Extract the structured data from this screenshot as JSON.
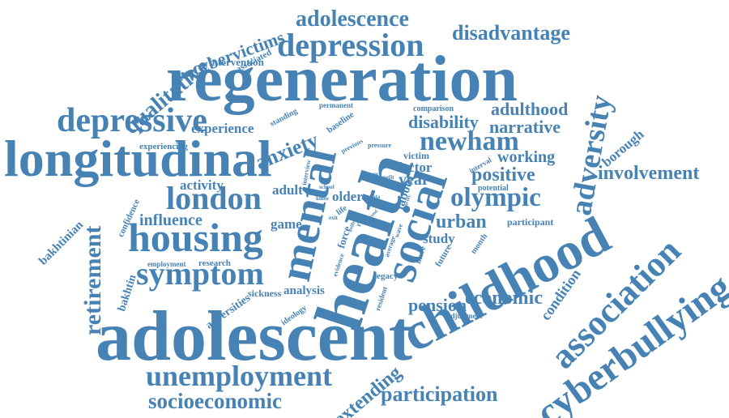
{
  "color": "#4682b4",
  "words": [
    "adolescent",
    "regeneration",
    "health",
    "longitudinal",
    "childhood",
    "housing",
    "cyberbullying",
    "association",
    "mental",
    "social",
    "symptom",
    "depressive",
    "unemployment",
    "depression",
    "adversity",
    "london",
    "newham",
    "socioeconomic",
    "olympic",
    "retirement",
    "adolescence",
    "disadvantage",
    "qualitative",
    "anxiety",
    "involvement",
    "participation",
    "extending",
    "cybervictims",
    "disability",
    "narrative",
    "adulthood",
    "positive",
    "economic",
    "urban",
    "working",
    "influence",
    "pension",
    "condition",
    "experience",
    "activity",
    "adult",
    "bakhtinian",
    "bakhtin",
    "study",
    "borough",
    "year",
    "factor",
    "labour",
    "older",
    "game",
    "analysis",
    "sickness",
    "adversities",
    "force",
    "victim",
    "intervention",
    "associated",
    "legacy",
    "participant",
    "potential",
    "comparison",
    "confidence",
    "research",
    "employment",
    "experiencing",
    "standing",
    "permanent",
    "baseline",
    "previous",
    "pressure",
    "interview",
    "school",
    "change",
    "benefit",
    "interval",
    "month",
    "future",
    "more",
    "evidence",
    "resident",
    "ideology",
    "adjustment",
    "life",
    "risk",
    "exit",
    "data",
    "know",
    "average",
    "wave",
    "survey",
    "wellbeing",
    "trend"
  ]
}
